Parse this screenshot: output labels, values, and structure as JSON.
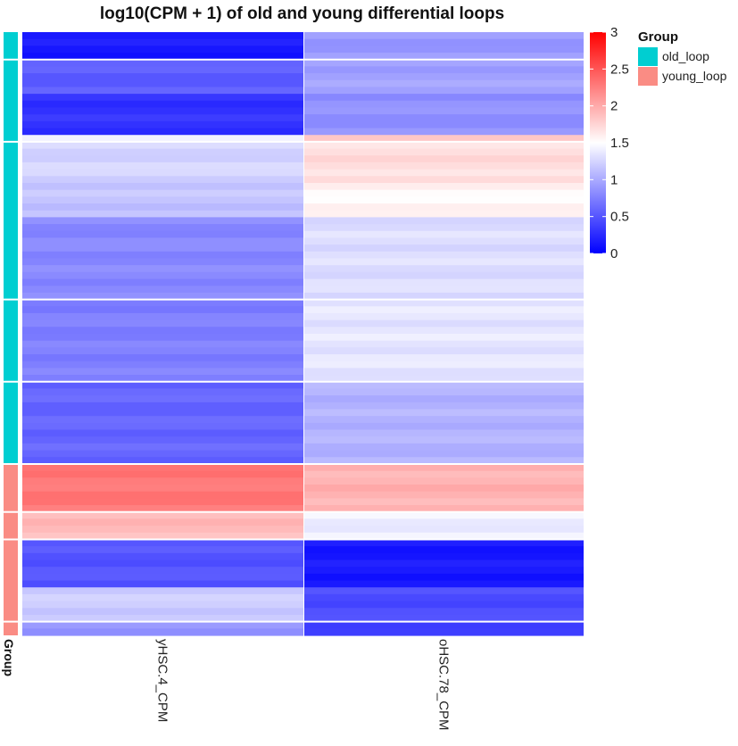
{
  "chart_data": {
    "type": "heatmap",
    "title": "log10(CPM + 1) of old and young differential loops",
    "columns": [
      "yHSC.4_CPM",
      "oHSC.78_CPM"
    ],
    "row_annotation": {
      "title": "Group",
      "axis_label": "Group",
      "levels": [
        {
          "name": "old_loop",
          "color": "#00CED1"
        },
        {
          "name": "young_loop",
          "color": "#FA8C84"
        }
      ],
      "row_counts": [
        {
          "group": "old_loop",
          "rows": 63
        },
        {
          "group": "young_loop",
          "rows": 25
        }
      ]
    },
    "color_scale": {
      "min": 0,
      "mid": 1.5,
      "max": 3,
      "low_color": "#0000FF",
      "mid_color": "#FFFFFF",
      "high_color": "#FF0000",
      "ticks": [
        "0",
        "0.5",
        "1",
        "1.5",
        "2",
        "2.5",
        "3"
      ]
    },
    "blocks": [
      {
        "group": "old_loop",
        "rows": 4,
        "values": [
          0.15,
          0.9
        ]
      },
      {
        "group": "old_loop",
        "rows": 5,
        "values": [
          0.55,
          0.95
        ]
      },
      {
        "group": "old_loop",
        "rows": 6,
        "values": [
          0.3,
          0.85
        ]
      },
      {
        "group": "old_loop",
        "rows": 1,
        "values": [
          1.4,
          1.8
        ]
      },
      {
        "group": "old_loop",
        "rows": 6,
        "values": [
          1.25,
          1.7
        ]
      },
      {
        "group": "old_loop",
        "rows": 5,
        "values": [
          1.15,
          1.55
        ]
      },
      {
        "group": "old_loop",
        "rows": 12,
        "values": [
          0.8,
          1.3
        ]
      },
      {
        "group": "old_loop",
        "rows": 12,
        "values": [
          0.75,
          1.35
        ]
      },
      {
        "group": "old_loop",
        "rows": 12,
        "values": [
          0.6,
          1.05
        ]
      },
      {
        "group": "young_loop",
        "rows": 7,
        "values": [
          2.3,
          1.95
        ]
      },
      {
        "group": "young_loop",
        "rows": 4,
        "values": [
          1.9,
          1.4
        ]
      },
      {
        "group": "young_loop",
        "rows": 7,
        "values": [
          0.5,
          0.15
        ]
      },
      {
        "group": "young_loop",
        "rows": 5,
        "values": [
          1.2,
          0.45
        ]
      },
      {
        "group": "young_loop",
        "rows": 2,
        "values": [
          0.85,
          0.4
        ]
      }
    ]
  },
  "legend": {
    "title": "Group",
    "items": [
      {
        "label": "old_loop",
        "color": "#00CED1"
      },
      {
        "label": "young_loop",
        "color": "#FA8C84"
      }
    ]
  }
}
